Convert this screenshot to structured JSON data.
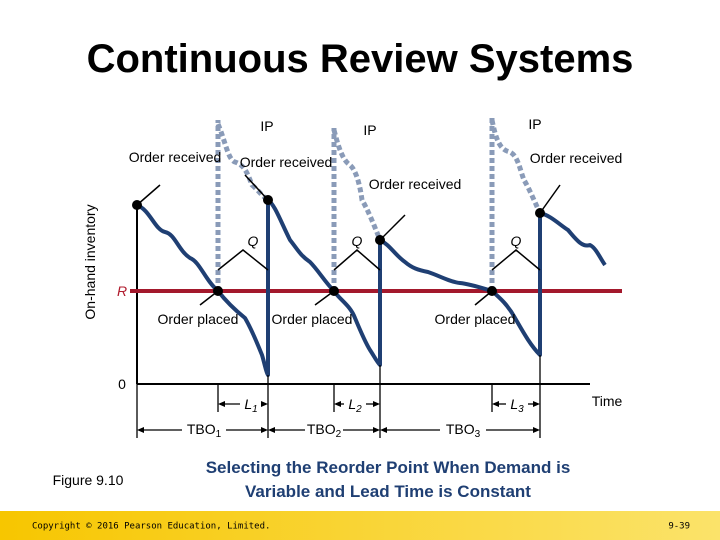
{
  "header": {
    "title": "Continuous Review Systems"
  },
  "axes": {
    "y_label": "On-hand inventory",
    "reorder_label": "R",
    "zero_label": "0",
    "x_label": "Time"
  },
  "order_received": [
    "Order received",
    "Order received",
    "Order received",
    "Order received"
  ],
  "ip": [
    "IP",
    "IP",
    "IP"
  ],
  "q": [
    "Q",
    "Q",
    "Q"
  ],
  "order_placed": [
    "Order placed",
    "Order placed",
    "Order placed"
  ],
  "lead_times": [
    {
      "text": "L",
      "sub": "1"
    },
    {
      "text": "L",
      "sub": "2"
    },
    {
      "text": "L",
      "sub": "3"
    }
  ],
  "tbo": [
    {
      "text": "TBO",
      "sub": "1"
    },
    {
      "text": "TBO",
      "sub": "2"
    },
    {
      "text": "TBO",
      "sub": "3"
    }
  ],
  "figure": "Figure 9.10",
  "caption": [
    "Selecting the Reorder Point When Demand is",
    "Variable and Lead Time is Constant"
  ],
  "footer": {
    "copyright": "Copyright © 2016 Pearson Education, Limited.",
    "page": "9-39"
  }
}
